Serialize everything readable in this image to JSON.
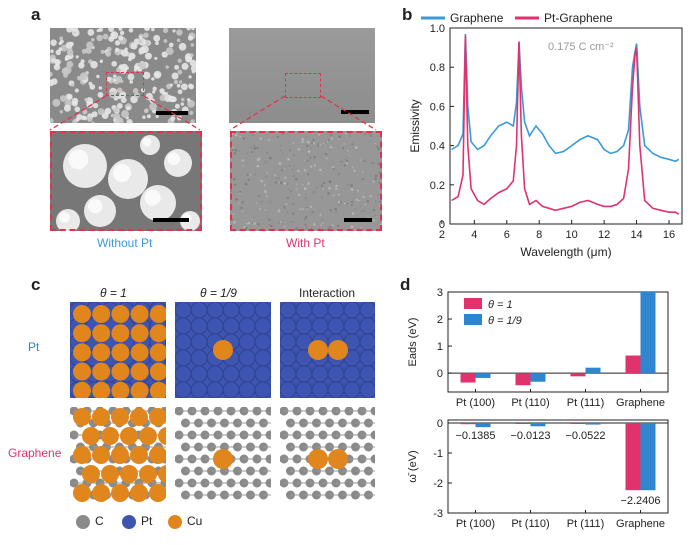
{
  "panels": {
    "a": "a",
    "b": "b",
    "c": "c",
    "d": "d"
  },
  "panel_a": {
    "left_caption": "Without Pt",
    "right_caption": "With Pt"
  },
  "panel_c": {
    "col_headers": [
      "θ = 1",
      "θ = 1/9",
      "Interaction"
    ],
    "row_labels": [
      "Pt",
      "Graphene"
    ],
    "legend": [
      {
        "label": "C",
        "color": "#8a8a8a"
      },
      {
        "label": "Pt",
        "color": "#3d55b0"
      },
      {
        "label": "Cu",
        "color": "#e0861c"
      }
    ]
  },
  "colors": {
    "graphene": "#3a9ad9",
    "pt_graphene": "#e0336e",
    "theta1": "#e0336e",
    "theta19": "#2f86cc",
    "dash": "#e0334f"
  },
  "chart_data": [
    {
      "type": "line",
      "panel": "b",
      "xlabel": "Wavelength (μm)",
      "ylabel": "Emissivity",
      "annotation": "0.175 C cm⁻²",
      "xlim": [
        2.5,
        16.8
      ],
      "ylim": [
        0,
        1.0
      ],
      "xticks": [
        "2",
        "4",
        "6",
        "8",
        "10",
        "12",
        "14",
        "16"
      ],
      "yticks": [
        "0",
        "0.2",
        "0.4",
        "0.6",
        "0.8",
        "1.0"
      ],
      "legend_position": "top",
      "series": [
        {
          "name": "Graphene",
          "color": "#3a9ad9",
          "x": [
            2.6,
            3.0,
            3.3,
            3.45,
            3.6,
            3.8,
            4.2,
            4.6,
            5.0,
            5.5,
            6.0,
            6.4,
            6.6,
            6.75,
            6.9,
            7.1,
            7.4,
            7.8,
            8.2,
            8.6,
            9.0,
            9.5,
            10.0,
            10.5,
            11.0,
            11.3,
            11.6,
            12.0,
            12.4,
            12.8,
            13.2,
            13.5,
            13.75,
            13.9,
            14.0,
            14.2,
            14.5,
            15.0,
            15.5,
            16.0,
            16.4,
            16.6
          ],
          "y": [
            0.38,
            0.4,
            0.46,
            0.97,
            0.6,
            0.42,
            0.38,
            0.4,
            0.45,
            0.5,
            0.52,
            0.5,
            0.62,
            0.93,
            0.7,
            0.52,
            0.45,
            0.5,
            0.46,
            0.4,
            0.36,
            0.37,
            0.4,
            0.43,
            0.45,
            0.44,
            0.43,
            0.38,
            0.36,
            0.37,
            0.4,
            0.48,
            0.8,
            0.88,
            0.92,
            0.6,
            0.4,
            0.36,
            0.34,
            0.33,
            0.32,
            0.33
          ]
        },
        {
          "name": "Pt-Graphene",
          "color": "#e0336e",
          "x": [
            2.6,
            3.0,
            3.3,
            3.45,
            3.6,
            3.8,
            4.2,
            4.6,
            5.0,
            5.5,
            6.0,
            6.4,
            6.6,
            6.75,
            6.9,
            7.1,
            7.4,
            7.8,
            8.2,
            8.6,
            9.0,
            9.5,
            10.0,
            10.5,
            11.0,
            11.3,
            11.6,
            12.0,
            12.4,
            12.8,
            13.2,
            13.5,
            13.75,
            13.9,
            14.0,
            14.2,
            14.5,
            15.0,
            15.5,
            16.0,
            16.4,
            16.6
          ],
          "y": [
            0.12,
            0.14,
            0.25,
            0.96,
            0.4,
            0.18,
            0.12,
            0.1,
            0.13,
            0.16,
            0.18,
            0.22,
            0.4,
            0.93,
            0.45,
            0.18,
            0.1,
            0.12,
            0.09,
            0.08,
            0.07,
            0.08,
            0.09,
            0.11,
            0.12,
            0.11,
            0.1,
            0.09,
            0.09,
            0.1,
            0.13,
            0.28,
            0.7,
            0.86,
            0.9,
            0.4,
            0.12,
            0.08,
            0.07,
            0.06,
            0.06,
            0.05
          ]
        }
      ]
    },
    {
      "type": "bar",
      "panel": "d-top",
      "ylabel": "Eads (eV)",
      "ylim": [
        -0.7,
        3.0
      ],
      "yticks": [
        "-1",
        "0",
        "1",
        "2",
        "3"
      ],
      "categories": [
        "Pt (100)",
        "Pt (110)",
        "Pt (111)",
        "Graphene"
      ],
      "series": [
        {
          "name": "θ = 1",
          "color": "#e0336e",
          "values": [
            -0.35,
            -0.45,
            -0.12,
            0.65
          ]
        },
        {
          "name": "θ = 1/9",
          "color": "#2f86cc",
          "values": [
            -0.18,
            -0.32,
            0.2,
            3.0
          ]
        }
      ]
    },
    {
      "type": "bar",
      "panel": "d-bottom",
      "ylabel": "ω̄ (eV)",
      "ylim": [
        -3,
        0.1
      ],
      "yticks": [
        "0",
        "-1",
        "-2",
        "-3"
      ],
      "categories": [
        "Pt (100)",
        "Pt (110)",
        "Pt (111)",
        "Graphene"
      ],
      "series": [
        {
          "name": "θ = 1",
          "color": "#e0336e",
          "values": [
            -0.04,
            -0.0123,
            -0.02,
            -2.24
          ]
        },
        {
          "name": "θ = 1/9",
          "color": "#2f86cc",
          "values": [
            -0.1385,
            -0.11,
            -0.0522,
            -2.2406
          ]
        }
      ],
      "data_labels": [
        "−0.1385",
        "−0.0123",
        "−0.0522",
        "−2.2406"
      ]
    }
  ]
}
